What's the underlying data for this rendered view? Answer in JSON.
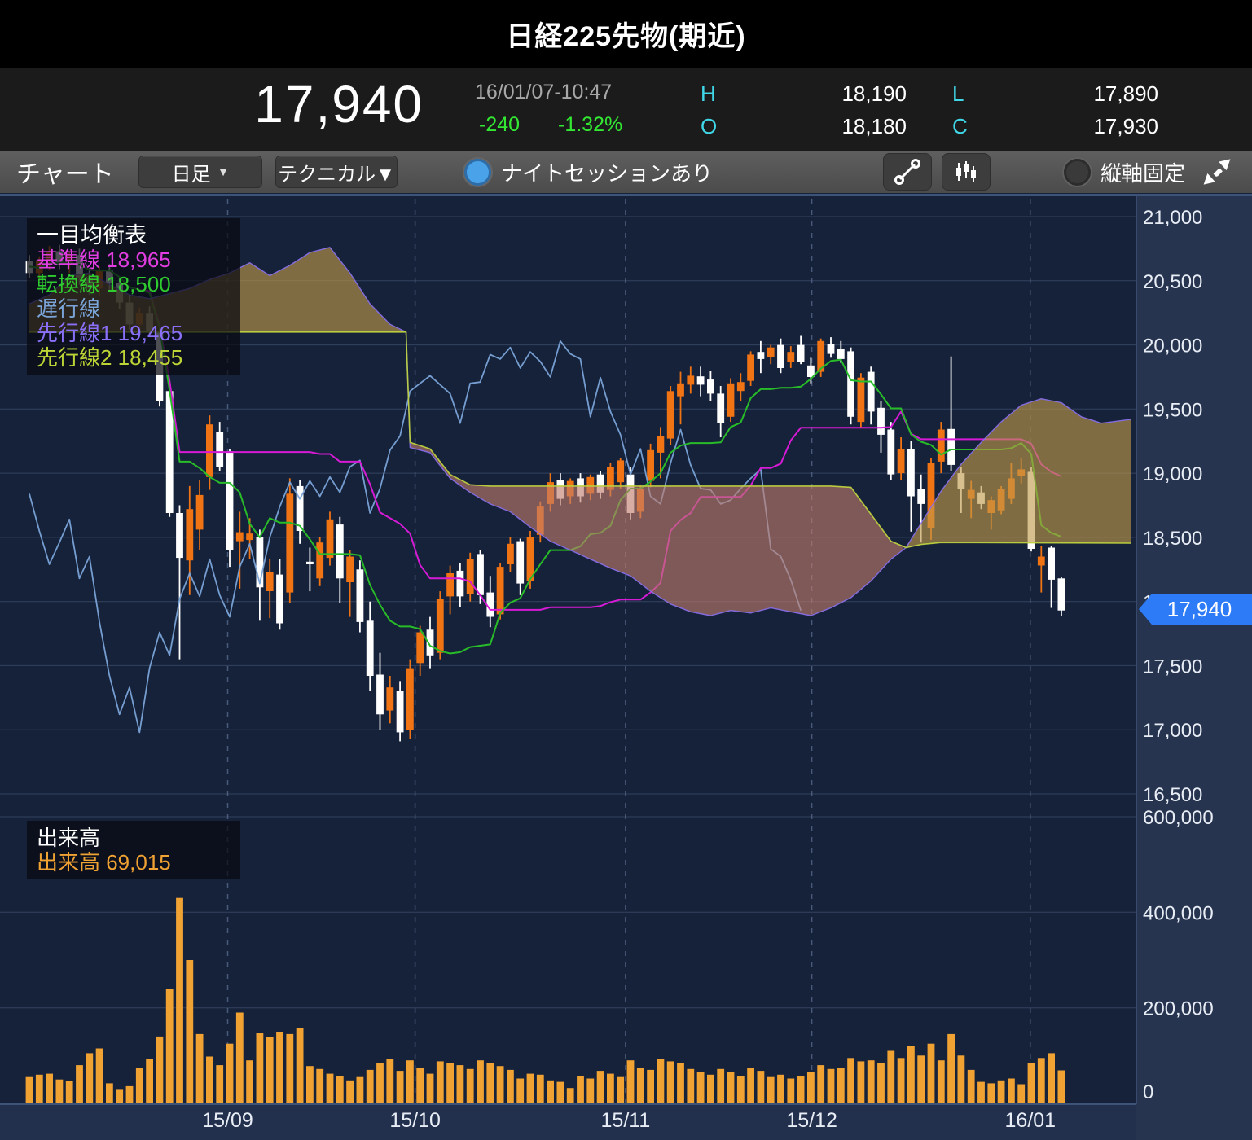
{
  "title": "日経225先物(期近)",
  "header": {
    "price": "17,940",
    "datetime": "16/01/07-10:47",
    "change": "-240",
    "change_pct": "-1.32%",
    "high_label": "H",
    "high": "18,190",
    "low_label": "L",
    "low": "17,890",
    "open_label": "O",
    "open": "18,180",
    "close_label": "C",
    "close": "17,930",
    "change_color": "#33e833",
    "hloc_label_color": "#40d8e8"
  },
  "toolbar": {
    "chart_label": "チャート",
    "period_button": "日足",
    "dropdown_caret": "▼",
    "technical_button": "テクニカル▼",
    "night_session_label": "ナイトセッションあり",
    "axis_lock_label": "縦軸固定",
    "icons": [
      "trendline-tool-icon",
      "candlestick-tool-icon",
      "collapse-icon"
    ]
  },
  "chart_data": {
    "type": "candlestick_volume_ichimoku",
    "title": "一目均衡表",
    "volume_title": "出来高",
    "volume_value_label": "69,015",
    "current_price": 17940,
    "current_price_label": "17,940",
    "price_axis": {
      "min": 16500,
      "max": 21000,
      "step": 500,
      "labels": [
        "21,000",
        "20,500",
        "20,000",
        "19,500",
        "19,000",
        "18,500",
        "18,000",
        "17,500",
        "17,000",
        "16,500"
      ]
    },
    "volume_axis": {
      "min": 0,
      "max": 600000,
      "ticks": [
        600000,
        400000,
        200000,
        0
      ],
      "labels": [
        "600,000",
        "400,000",
        "200,000",
        "0"
      ]
    },
    "x_ticks": [
      {
        "pos": 19.8,
        "label": "15/09"
      },
      {
        "pos": 38.5,
        "label": "15/10"
      },
      {
        "pos": 59.5,
        "label": "15/11"
      },
      {
        "pos": 78.1,
        "label": "15/12"
      },
      {
        "pos": 99.9,
        "label": "16/01"
      }
    ],
    "legend": [
      {
        "name": "kijun",
        "label": "基準線",
        "value": "18,965",
        "color": "#e23de2"
      },
      {
        "name": "tenkan",
        "label": "転換線",
        "value": "18,500",
        "color": "#2ecc2e"
      },
      {
        "name": "chikou",
        "label": "遅行線",
        "value": "",
        "color": "#7aa4d8"
      },
      {
        "name": "senkou1",
        "label": "先行線1",
        "value": "19,465",
        "color": "#8a70f8"
      },
      {
        "name": "senkou2",
        "label": "先行線2",
        "value": "18,455",
        "color": "#bcd435"
      }
    ],
    "colors": {
      "up": "#f07314",
      "down": "#ffffff",
      "volume": "#f0a233",
      "cloud_bull": "#c09a48",
      "cloud_bear": "#c07a6a",
      "tenkan": "#28bc28",
      "kijun": "#d61ad6",
      "chikou": "#7aa4d8",
      "senkou_a": "#8a70f0",
      "senkou_b": "#bed23e",
      "plot_bg": "#16223a",
      "axis_bg": "#263450",
      "strip_bg": "#22304e",
      "grid": "#33425f",
      "grid_dash": "#5b6c8e",
      "frame": "#3e5378",
      "tag": "#2d7bf7",
      "label": "#e8edf5"
    },
    "candles": [
      [
        20650,
        20700,
        20520,
        20560,
        55000
      ],
      [
        20560,
        20690,
        20500,
        20660,
        60000
      ],
      [
        20660,
        20770,
        20580,
        20730,
        62000
      ],
      [
        20730,
        20780,
        20590,
        20620,
        50000
      ],
      [
        20620,
        20730,
        20560,
        20700,
        46000
      ],
      [
        20700,
        20750,
        20470,
        20520,
        80000
      ],
      [
        20520,
        20600,
        20390,
        20440,
        105000
      ],
      [
        20440,
        20610,
        20380,
        20580,
        115000
      ],
      [
        20580,
        20630,
        20430,
        20480,
        42000
      ],
      [
        20480,
        20530,
        20280,
        20330,
        30000
      ],
      [
        20330,
        20390,
        20120,
        20160,
        36000
      ],
      [
        20160,
        20290,
        20080,
        20250,
        75000
      ],
      [
        20250,
        20300,
        20060,
        20110,
        92000
      ],
      [
        20110,
        20150,
        19520,
        19560,
        140000
      ],
      [
        19640,
        19660,
        18660,
        18690,
        240000
      ],
      [
        18690,
        18750,
        17550,
        18340,
        430000
      ],
      [
        18320,
        18900,
        18050,
        18720,
        300000
      ],
      [
        18560,
        18950,
        18400,
        18830,
        145000
      ],
      [
        18970,
        19450,
        18870,
        19380,
        98000
      ],
      [
        19320,
        19400,
        19020,
        19050,
        80000
      ],
      [
        19170,
        19190,
        18270,
        18400,
        125000
      ],
      [
        18470,
        18700,
        18100,
        18540,
        190000
      ],
      [
        18480,
        18650,
        18330,
        18530,
        90000
      ],
      [
        18500,
        18560,
        17850,
        18110,
        148000
      ],
      [
        18080,
        18330,
        17870,
        18230,
        138000
      ],
      [
        18210,
        18330,
        17780,
        17830,
        150000
      ],
      [
        18070,
        18960,
        17990,
        18840,
        145000
      ],
      [
        18900,
        18950,
        18450,
        18550,
        158000
      ],
      [
        18310,
        18420,
        18080,
        18290,
        78000
      ],
      [
        18180,
        18500,
        18120,
        18460,
        72000
      ],
      [
        18340,
        18700,
        18280,
        18640,
        62000
      ],
      [
        18600,
        18660,
        17990,
        18180,
        58000
      ],
      [
        18150,
        18400,
        17880,
        18350,
        48000
      ],
      [
        18250,
        18320,
        17760,
        17840,
        55000
      ],
      [
        17850,
        18000,
        17300,
        17420,
        70000
      ],
      [
        17430,
        17600,
        17000,
        17120,
        85000
      ],
      [
        17150,
        17420,
        17050,
        17330,
        92000
      ],
      [
        17300,
        17380,
        16910,
        16980,
        68000
      ],
      [
        17000,
        17550,
        16930,
        17480,
        90000
      ],
      [
        17520,
        17810,
        17420,
        17760,
        75000
      ],
      [
        17780,
        17880,
        17480,
        17580,
        62000
      ],
      [
        17600,
        18080,
        17550,
        18020,
        88000
      ],
      [
        18040,
        18280,
        17900,
        18220,
        85000
      ],
      [
        18240,
        18300,
        17960,
        18040,
        80000
      ],
      [
        18060,
        18380,
        18000,
        18330,
        72000
      ],
      [
        18370,
        18400,
        17980,
        18050,
        90000
      ],
      [
        18070,
        18200,
        17800,
        17880,
        85000
      ],
      [
        17900,
        18300,
        17860,
        18270,
        78000
      ],
      [
        18290,
        18500,
        18230,
        18450,
        70000
      ],
      [
        18470,
        18490,
        18050,
        18140,
        52000
      ],
      [
        18160,
        18550,
        18100,
        18500,
        62000
      ],
      [
        18520,
        18780,
        18460,
        18740,
        60000
      ],
      [
        18760,
        19000,
        18700,
        18930,
        48000
      ],
      [
        18950,
        19000,
        18750,
        18800,
        45000
      ],
      [
        18820,
        18960,
        18760,
        18940,
        32000
      ],
      [
        18960,
        19000,
        18770,
        18820,
        58000
      ],
      [
        18840,
        18990,
        18790,
        18970,
        52000
      ],
      [
        18990,
        19020,
        18800,
        18850,
        68000
      ],
      [
        18870,
        19080,
        18820,
        19050,
        62000
      ],
      [
        18930,
        19120,
        18880,
        19100,
        55000
      ],
      [
        18990,
        19050,
        18640,
        18690,
        90000
      ],
      [
        18700,
        18910,
        18650,
        18880,
        75000
      ],
      [
        18940,
        19230,
        18890,
        19180,
        70000
      ],
      [
        19160,
        19360,
        18960,
        19290,
        92000
      ],
      [
        19270,
        19680,
        19220,
        19640,
        88000
      ],
      [
        19600,
        19790,
        19380,
        19700,
        85000
      ],
      [
        19690,
        19830,
        19620,
        19760,
        72000
      ],
      [
        19755,
        19830,
        19600,
        19690,
        65000
      ],
      [
        19730,
        19800,
        19560,
        19620,
        60000
      ],
      [
        19620,
        19680,
        19280,
        19390,
        72000
      ],
      [
        19440,
        19740,
        19400,
        19700,
        65000
      ],
      [
        19640,
        19780,
        19560,
        19710,
        58000
      ],
      [
        19720,
        19950,
        19680,
        19925,
        75000
      ],
      [
        19945,
        20030,
        19780,
        19890,
        68000
      ],
      [
        19905,
        20000,
        19850,
        19980,
        55000
      ],
      [
        20000,
        20050,
        19780,
        19820,
        60000
      ],
      [
        19870,
        19990,
        19820,
        19945,
        52000
      ],
      [
        20000,
        20070,
        19850,
        19870,
        58000
      ],
      [
        19840,
        19900,
        19700,
        19750,
        65000
      ],
      [
        19790,
        20050,
        19750,
        20030,
        80000
      ],
      [
        20010,
        20060,
        19900,
        19930,
        72000
      ],
      [
        19970,
        20030,
        19860,
        19890,
        75000
      ],
      [
        19950,
        19980,
        19380,
        19440,
        95000
      ],
      [
        19400,
        19780,
        19360,
        19745,
        88000
      ],
      [
        19790,
        19830,
        19380,
        19480,
        90000
      ],
      [
        19510,
        19560,
        19160,
        19300,
        85000
      ],
      [
        19340,
        19400,
        18950,
        18990,
        110000
      ],
      [
        19000,
        19280,
        18950,
        19190,
        95000
      ],
      [
        19190,
        19250,
        18545,
        18820,
        120000
      ],
      [
        18880,
        18990,
        18460,
        18760,
        100000
      ],
      [
        18570,
        19120,
        18480,
        19080,
        125000
      ],
      [
        19090,
        19400,
        19000,
        19340,
        90000
      ],
      [
        19345,
        19910,
        19020,
        19065,
        145000
      ],
      [
        19000,
        19050,
        18690,
        18880,
        100000
      ],
      [
        18800,
        18940,
        18650,
        18870,
        70000
      ],
      [
        18850,
        18900,
        18720,
        18760,
        45000
      ],
      [
        18690,
        18820,
        18560,
        18790,
        42000
      ],
      [
        18710,
        18900,
        18680,
        18880,
        48000
      ],
      [
        18800,
        19080,
        18760,
        18960,
        52000
      ],
      [
        18980,
        19120,
        18920,
        19030,
        40000
      ],
      [
        19010,
        19050,
        18390,
        18410,
        85000
      ],
      [
        18280,
        18430,
        18070,
        18350,
        95000
      ],
      [
        18420,
        18430,
        17950,
        18170,
        105000
      ],
      [
        18180,
        18190,
        17890,
        17930,
        69015
      ]
    ],
    "senkou_a": [
      [
        0,
        20320
      ],
      [
        2,
        20390
      ],
      [
        4,
        20540
      ],
      [
        6,
        20560
      ],
      [
        8,
        20470
      ],
      [
        10,
        20390
      ],
      [
        12,
        20360
      ],
      [
        14,
        20400
      ],
      [
        16,
        20440
      ],
      [
        18,
        20510
      ],
      [
        20,
        20560
      ],
      [
        22,
        20640
      ],
      [
        24,
        20540
      ],
      [
        26,
        20620
      ],
      [
        28,
        20720
      ],
      [
        30,
        20760
      ],
      [
        32,
        20560
      ],
      [
        34,
        20320
      ],
      [
        36,
        20160
      ],
      [
        37.6,
        20100
      ],
      [
        38,
        19200
      ],
      [
        40,
        19160
      ],
      [
        42,
        18960
      ],
      [
        44,
        18850
      ],
      [
        46,
        18760
      ],
      [
        48,
        18700
      ],
      [
        50,
        18580
      ],
      [
        52,
        18470
      ],
      [
        54,
        18400
      ],
      [
        56,
        18330
      ],
      [
        58,
        18260
      ],
      [
        60,
        18200
      ],
      [
        62,
        18080
      ],
      [
        64,
        17980
      ],
      [
        66,
        17920
      ],
      [
        68,
        17890
      ],
      [
        70,
        17930
      ],
      [
        72,
        17910
      ],
      [
        74,
        17950
      ],
      [
        76,
        17920
      ],
      [
        78,
        17890
      ],
      [
        80,
        17950
      ],
      [
        82,
        18030
      ],
      [
        84,
        18160
      ],
      [
        86,
        18330
      ],
      [
        87.5,
        18420
      ],
      [
        89,
        18610
      ],
      [
        91,
        18860
      ],
      [
        93,
        19070
      ],
      [
        95,
        19240
      ],
      [
        97,
        19400
      ],
      [
        99,
        19530
      ],
      [
        101,
        19580
      ],
      [
        103,
        19550
      ],
      [
        105,
        19440
      ],
      [
        107,
        19390
      ],
      [
        110,
        19420
      ]
    ],
    "senkou_b": [
      [
        0,
        20100
      ],
      [
        37.6,
        20100
      ],
      [
        38,
        19240
      ],
      [
        40,
        19190
      ],
      [
        42,
        18990
      ],
      [
        44,
        18910
      ],
      [
        46,
        18900
      ],
      [
        80,
        18900
      ],
      [
        82,
        18890
      ],
      [
        84,
        18680
      ],
      [
        86,
        18470
      ],
      [
        87.5,
        18420
      ],
      [
        89,
        18445
      ],
      [
        91,
        18460
      ],
      [
        110,
        18455
      ]
    ],
    "tenkan_period": 9,
    "kijun_period": 26,
    "chikou_shift": 26
  }
}
